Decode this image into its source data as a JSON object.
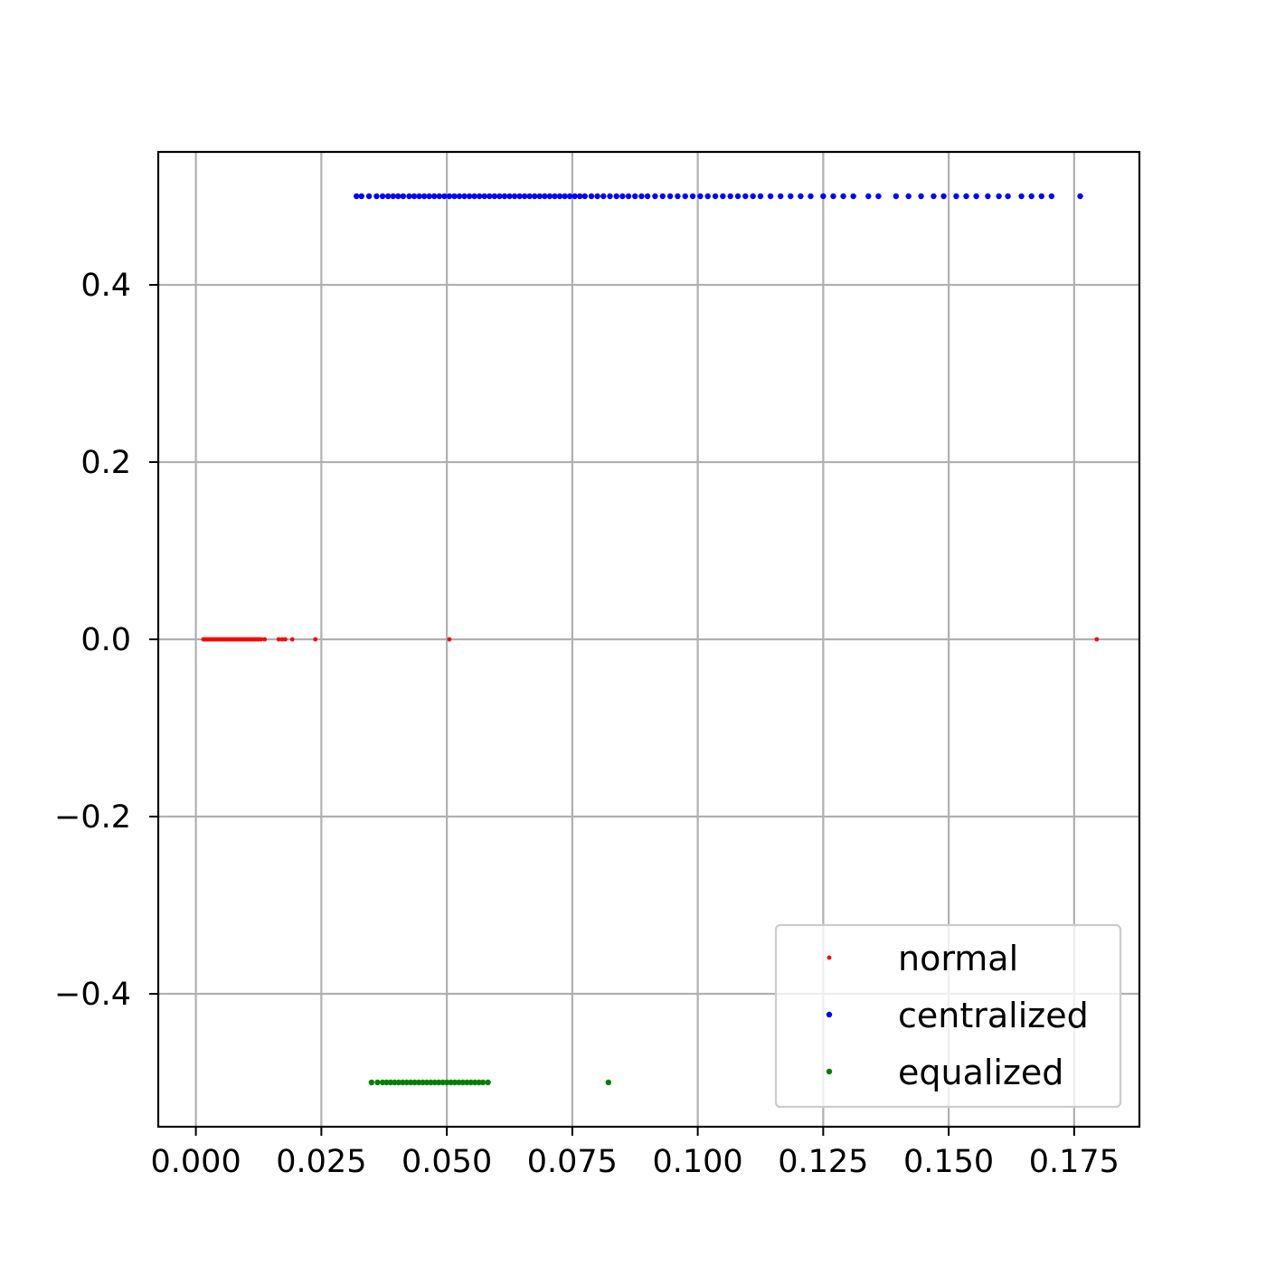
{
  "chart_data": {
    "type": "scatter",
    "title": "",
    "xlabel": "",
    "ylabel": "",
    "xlim": [
      -0.0075,
      0.188
    ],
    "ylim": [
      -0.55,
      0.55
    ],
    "grid": true,
    "legend_placement": "lower-right",
    "x_ticks": [
      0.0,
      0.025,
      0.05,
      0.075,
      0.1,
      0.125,
      0.15,
      0.175
    ],
    "x_tick_labels": [
      "0.000",
      "0.025",
      "0.050",
      "0.075",
      "0.100",
      "0.125",
      "0.150",
      "0.175"
    ],
    "y_ticks": [
      -0.4,
      -0.2,
      0.0,
      0.2,
      0.4
    ],
    "y_tick_labels": [
      "−0.4",
      "−0.2",
      "0.0",
      "0.2",
      "0.4"
    ],
    "series": [
      {
        "name": "normal",
        "color": "#ff0000",
        "y": 0.0,
        "x": [
          0.0015,
          0.0018,
          0.0021,
          0.0024,
          0.0027,
          0.003,
          0.0033,
          0.0036,
          0.0039,
          0.0042,
          0.0045,
          0.0048,
          0.0051,
          0.0054,
          0.0057,
          0.006,
          0.0063,
          0.0066,
          0.0069,
          0.0072,
          0.0075,
          0.0078,
          0.0081,
          0.0084,
          0.0087,
          0.009,
          0.0093,
          0.0096,
          0.0099,
          0.0102,
          0.0105,
          0.0108,
          0.0111,
          0.0114,
          0.0117,
          0.012,
          0.0123,
          0.0126,
          0.013,
          0.0137,
          0.0165,
          0.0172,
          0.0178,
          0.0192,
          0.0238,
          0.0505,
          0.1795
        ]
      },
      {
        "name": "centralized",
        "color": "#0000ff",
        "y": 0.5,
        "x": [
          0.032,
          0.033,
          0.0345,
          0.036,
          0.0372,
          0.0383,
          0.0393,
          0.0403,
          0.0413,
          0.0425,
          0.0435,
          0.0445,
          0.0455,
          0.0465,
          0.0475,
          0.0485,
          0.0495,
          0.0505,
          0.0515,
          0.0525,
          0.0535,
          0.0545,
          0.0555,
          0.0565,
          0.0575,
          0.0585,
          0.0595,
          0.0605,
          0.0615,
          0.0625,
          0.0635,
          0.0645,
          0.0655,
          0.0665,
          0.0675,
          0.0685,
          0.0695,
          0.0705,
          0.0715,
          0.0725,
          0.0735,
          0.0745,
          0.0755,
          0.0765,
          0.0775,
          0.0788,
          0.08,
          0.0812,
          0.0825,
          0.0838,
          0.085,
          0.0862,
          0.0875,
          0.0888,
          0.09,
          0.0915,
          0.093,
          0.0945,
          0.096,
          0.0975,
          0.099,
          0.1005,
          0.102,
          0.1035,
          0.105,
          0.1065,
          0.108,
          0.1095,
          0.111,
          0.1125,
          0.1145,
          0.1165,
          0.1185,
          0.1205,
          0.1225,
          0.125,
          0.127,
          0.129,
          0.131,
          0.134,
          0.136,
          0.1395,
          0.142,
          0.1445,
          0.147,
          0.149,
          0.1515,
          0.1535,
          0.1555,
          0.1578,
          0.16,
          0.1618,
          0.1645,
          0.1665,
          0.1685,
          0.1705,
          0.1762
        ]
      },
      {
        "name": "equalized",
        "color": "#008000",
        "y": -0.5,
        "x": [
          0.035,
          0.0362,
          0.0372,
          0.038,
          0.0388,
          0.0396,
          0.0404,
          0.0412,
          0.042,
          0.0428,
          0.0436,
          0.0444,
          0.0452,
          0.046,
          0.0468,
          0.0476,
          0.0484,
          0.0492,
          0.05,
          0.0508,
          0.0516,
          0.0524,
          0.0532,
          0.054,
          0.0548,
          0.0556,
          0.0564,
          0.0572,
          0.0582,
          0.0822
        ]
      }
    ]
  }
}
